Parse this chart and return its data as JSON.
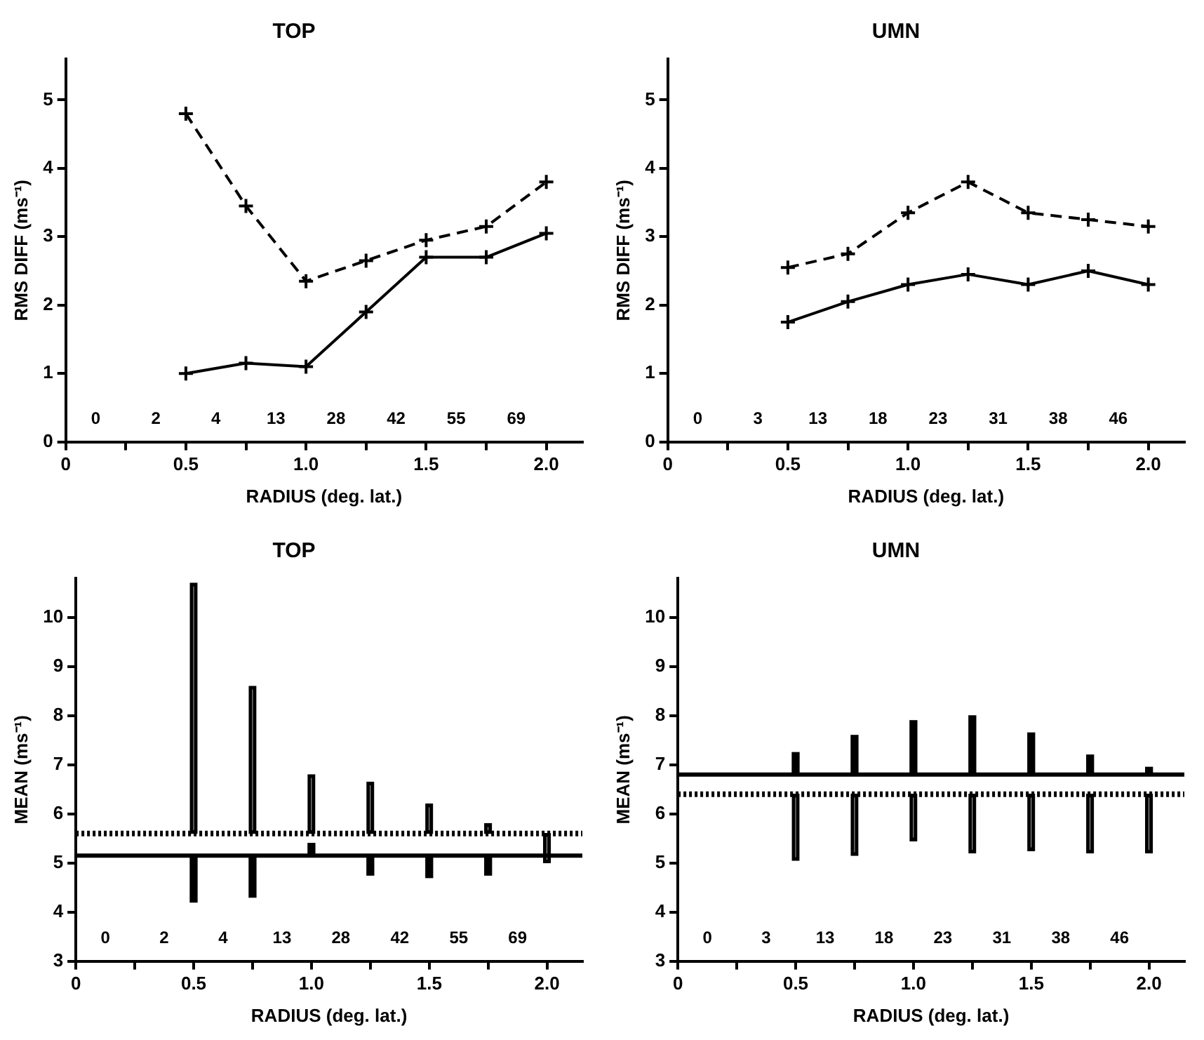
{
  "chart_data": [
    {
      "type": "line",
      "title": "TOP",
      "xlabel": "RADIUS (deg. lat.)",
      "ylabel": "RMS DIFF (ms⁻¹)",
      "x": [
        0.5,
        0.75,
        1.0,
        1.25,
        1.5,
        1.75,
        2.0
      ],
      "series": [
        {
          "color": "#000000",
          "line_style": "dashed",
          "values": [
            4.8,
            3.45,
            2.35,
            2.65,
            2.95,
            3.15,
            3.8
          ]
        },
        {
          "color": "#000000",
          "line_style": "solid",
          "values": [
            1.0,
            1.15,
            1.1,
            1.9,
            2.7,
            2.7,
            3.05
          ]
        }
      ],
      "marker": "cross",
      "xlim": [
        0,
        2.15
      ],
      "xticks": [
        0,
        {
          "value": 0.25,
          "label": null
        },
        0.5,
        {
          "value": 0.75,
          "label": null
        },
        {
          "value": 1,
          "label": "1.0"
        },
        {
          "value": 1.25,
          "label": null
        },
        1.5,
        {
          "value": 1.75,
          "label": null
        },
        {
          "value": 2,
          "label": "2.0"
        }
      ],
      "ylim": [
        0,
        5.6
      ],
      "yticks": [
        0,
        1,
        2,
        3,
        4,
        5
      ],
      "grid": false,
      "legend": false,
      "annotations": [
        "0",
        "2",
        "4",
        "13",
        "28",
        "42",
        "55",
        "69"
      ]
    },
    {
      "type": "line",
      "title": "UMN",
      "xlabel": "RADIUS (deg. lat.)",
      "ylabel": "RMS DIFF (ms⁻¹)",
      "x": [
        0.5,
        0.75,
        1.0,
        1.25,
        1.5,
        1.75,
        2.0
      ],
      "series": [
        {
          "color": "#000000",
          "line_style": "dashed",
          "values": [
            2.55,
            2.75,
            3.35,
            3.8,
            3.35,
            3.25,
            3.15
          ]
        },
        {
          "color": "#000000",
          "line_style": "solid",
          "values": [
            1.75,
            2.05,
            2.3,
            2.45,
            2.3,
            2.5,
            2.3
          ]
        }
      ],
      "marker": "cross",
      "xlim": [
        0,
        2.15
      ],
      "xticks": [
        0,
        {
          "value": 0.25,
          "label": null
        },
        0.5,
        {
          "value": 0.75,
          "label": null
        },
        {
          "value": 1,
          "label": "1.0"
        },
        {
          "value": 1.25,
          "label": null
        },
        1.5,
        {
          "value": 1.75,
          "label": null
        },
        {
          "value": 2,
          "label": "2.0"
        }
      ],
      "ylim": [
        0,
        5.6
      ],
      "yticks": [
        0,
        1,
        2,
        3,
        4,
        5
      ],
      "grid": false,
      "legend": false,
      "annotations": [
        "0",
        "3",
        "13",
        "18",
        "23",
        "31",
        "38",
        "46"
      ]
    },
    {
      "type": "bar",
      "title": "TOP",
      "xlabel": "RADIUS (deg. lat.)",
      "ylabel": "MEAN (ms⁻¹)",
      "x": [
        0.5,
        0.75,
        1.0,
        1.25,
        1.5,
        1.75,
        2.0
      ],
      "series": [
        {
          "color": "#000000",
          "line_style": "dotted",
          "base": [
            5.6,
            5.6,
            5.6,
            5.6,
            5.6,
            5.6,
            5.6
          ],
          "values": [
            5.1,
            3.0,
            1.2,
            1.05,
            0.6,
            0.2,
            -0.6
          ]
        },
        {
          "color": "#000000",
          "line_style": "solid",
          "base": [
            5.15,
            5.15,
            5.15,
            5.15,
            5.15,
            5.15,
            null
          ],
          "values": [
            -0.95,
            -0.85,
            0.25,
            -0.4,
            -0.45,
            -0.4,
            null
          ]
        }
      ],
      "ref_lines": [
        {
          "axis": "y",
          "value": 5.6,
          "color": "#000000",
          "line_style": "dotted"
        },
        {
          "axis": "y",
          "value": 5.15,
          "color": "#000000",
          "line_style": "solid"
        }
      ],
      "xlim": [
        0,
        2.15
      ],
      "xticks": [
        0,
        {
          "value": 0.25,
          "label": null
        },
        0.5,
        {
          "value": 0.75,
          "label": null
        },
        {
          "value": 1,
          "label": "1.0"
        },
        {
          "value": 1.25,
          "label": null
        },
        1.5,
        {
          "value": 1.75,
          "label": null
        },
        {
          "value": 2,
          "label": "2.0"
        }
      ],
      "ylim": [
        3,
        10.8
      ],
      "yticks": [
        3,
        4,
        5,
        6,
        7,
        8,
        9,
        10
      ],
      "grid": false,
      "legend": false,
      "annotations": [
        "0",
        "2",
        "4",
        "13",
        "28",
        "42",
        "55",
        "69"
      ]
    },
    {
      "type": "bar",
      "title": "UMN",
      "xlabel": "RADIUS (deg. lat.)",
      "ylabel": "MEAN (ms⁻¹)",
      "x": [
        0.5,
        0.75,
        1.0,
        1.25,
        1.5,
        1.75,
        2.0
      ],
      "series": [
        {
          "color": "#000000",
          "line_style": "solid",
          "base": [
            6.8,
            6.8,
            6.8,
            6.8,
            6.8,
            6.8,
            6.8
          ],
          "values": [
            0.45,
            0.8,
            1.1,
            1.2,
            0.85,
            0.4,
            0.15
          ]
        },
        {
          "color": "#000000",
          "line_style": "dotted",
          "base": [
            6.4,
            6.4,
            6.4,
            6.4,
            6.4,
            6.4,
            6.4
          ],
          "values": [
            -1.35,
            -1.25,
            -0.95,
            -1.2,
            -1.15,
            -1.2,
            -1.2
          ]
        }
      ],
      "ref_lines": [
        {
          "axis": "y",
          "value": 6.8,
          "color": "#000000",
          "line_style": "solid"
        },
        {
          "axis": "y",
          "value": 6.4,
          "color": "#000000",
          "line_style": "dotted"
        }
      ],
      "xlim": [
        0,
        2.15
      ],
      "xticks": [
        0,
        {
          "value": 0.25,
          "label": null
        },
        0.5,
        {
          "value": 0.75,
          "label": null
        },
        {
          "value": 1,
          "label": "1.0"
        },
        {
          "value": 1.25,
          "label": null
        },
        1.5,
        {
          "value": 1.75,
          "label": null
        },
        {
          "value": 2,
          "label": "2.0"
        }
      ],
      "ylim": [
        3,
        10.8
      ],
      "yticks": [
        3,
        4,
        5,
        6,
        7,
        8,
        9,
        10
      ],
      "grid": false,
      "legend": false,
      "annotations": [
        "0",
        "3",
        "13",
        "18",
        "23",
        "31",
        "38",
        "46"
      ]
    }
  ]
}
